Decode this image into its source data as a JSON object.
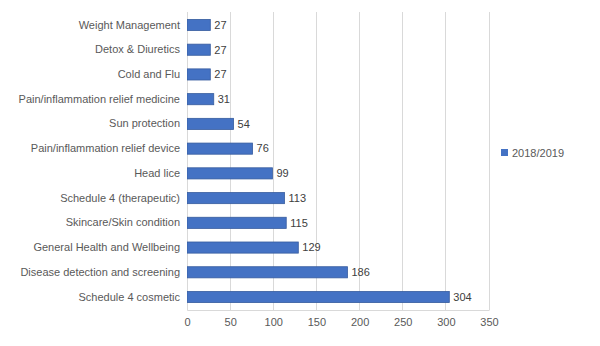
{
  "chart_data": {
    "type": "bar",
    "orientation": "horizontal",
    "categories": [
      "Weight Management",
      "Detox & Diuretics",
      "Cold and Flu",
      "Pain/inflammation relief medicine",
      "Sun protection",
      "Pain/inflammation relief device",
      "Head lice",
      "Schedule 4 (therapeutic)",
      "Skincare/Skin condition",
      "General Health and Wellbeing",
      "Disease detection and screening",
      "Schedule 4 cosmetic"
    ],
    "series": [
      {
        "name": "2018/2019",
        "color": "#4472c4",
        "values": [
          27,
          27,
          27,
          31,
          54,
          76,
          99,
          113,
          115,
          129,
          186,
          304
        ]
      }
    ],
    "xlim": [
      0,
      350
    ],
    "xticks": [
      0,
      50,
      100,
      150,
      200,
      250,
      300,
      350
    ],
    "grid": true,
    "legend": "right",
    "data_labels": true
  }
}
